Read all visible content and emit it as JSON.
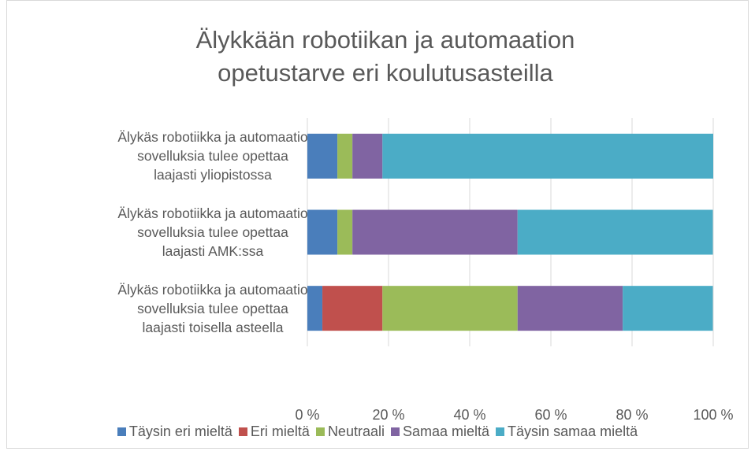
{
  "chart_data": {
    "type": "stacked-bar-horizontal",
    "title": "Älykkään robotiikan ja automaation opetustarve eri koulutusasteilla",
    "categories": [
      "Älykäs robotiikka ja automaatio sovelluksia tulee opettaa laajasti yliopistossa",
      "Älykäs robotiikka ja automaatio sovelluksia tulee opettaa laajasti AMK:ssa",
      "Älykäs robotiikka ja automaatio sovelluksia tulee opettaa laajasti toisella asteella"
    ],
    "series": [
      {
        "name": "Täysin eri mieltä",
        "color": "#4a7ebb",
        "values": [
          7.4,
          7.4,
          3.7
        ]
      },
      {
        "name": "Eri mieltä",
        "color": "#c0504d",
        "values": [
          0,
          0,
          14.8
        ]
      },
      {
        "name": "Neutraali",
        "color": "#9bbb59",
        "values": [
          3.7,
          3.7,
          33.3
        ]
      },
      {
        "name": "Samaa mieltä",
        "color": "#8064a2",
        "values": [
          7.4,
          40.7,
          25.9
        ]
      },
      {
        "name": "Täysin samaa mieltä",
        "color": "#4bacc6",
        "values": [
          81.5,
          48.1,
          22.2
        ]
      }
    ],
    "xlim": [
      0,
      100
    ],
    "xticks": [
      {
        "value": 0,
        "label": "0 %"
      },
      {
        "value": 20,
        "label": "20 %"
      },
      {
        "value": 40,
        "label": "40 %"
      },
      {
        "value": 60,
        "label": "60 %"
      },
      {
        "value": 80,
        "label": "80 %"
      },
      {
        "value": 100,
        "label": "100 %"
      }
    ],
    "grid": true
  }
}
